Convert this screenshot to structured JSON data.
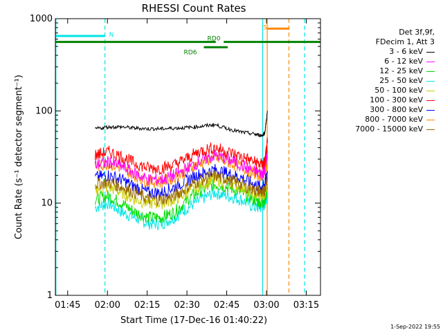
{
  "chart_data": {
    "type": "line",
    "title": "RHESSI Count Rates",
    "xlabel": "Start Time (17-Dec-16 01:40:22)",
    "ylabel": "Count Rate (s⁻¹ detector segment⁻¹)",
    "yscale": "log",
    "ylim": [
      1,
      1000
    ],
    "xlim_minutes": [
      0,
      100
    ],
    "x_tick_labels": [
      "01:45",
      "02:00",
      "02:15",
      "02:30",
      "02:45",
      "03:00",
      "03:15"
    ],
    "x_tick_minutes": [
      4.63,
      19.63,
      34.63,
      49.63,
      64.63,
      79.63,
      94.63
    ],
    "y_tick_labels": [
      "1",
      "10",
      "100",
      "1000"
    ],
    "y_tick_values": [
      1,
      10,
      100,
      1000
    ],
    "grid": false,
    "legend_placement": "right",
    "legend_header": [
      "Det 3f,9f,",
      "FDecim 1, Att 3"
    ],
    "series": [
      {
        "name": "3 - 6 keV",
        "color": "#000000",
        "x_minutes": [
          15,
          20,
          25,
          30,
          35,
          40,
          45,
          50,
          55,
          60,
          65,
          70,
          75,
          78,
          79,
          80
        ],
        "values": [
          64,
          67,
          67,
          65,
          64,
          64,
          65,
          66,
          68,
          71,
          64,
          59,
          56,
          54,
          58,
          100
        ]
      },
      {
        "name": "6 - 12 keV",
        "color": "#ff00ff",
        "x_minutes": [
          15,
          20,
          25,
          30,
          35,
          40,
          45,
          50,
          55,
          60,
          65,
          70,
          75,
          78,
          79,
          80
        ],
        "values": [
          26,
          28,
          25,
          21,
          18,
          18,
          20,
          24,
          29,
          33,
          30,
          26,
          22,
          21,
          23,
          38
        ]
      },
      {
        "name": "12 - 25 keV",
        "color": "#00dd00",
        "x_minutes": [
          15,
          20,
          25,
          30,
          35,
          40,
          45,
          50,
          55,
          60,
          65,
          70,
          75,
          78,
          79,
          80
        ],
        "values": [
          11,
          12,
          10,
          8,
          7,
          7,
          8,
          11,
          14,
          16,
          15,
          13,
          11,
          10,
          11,
          14
        ]
      },
      {
        "name": "25 - 50 keV",
        "color": "#00e5e5",
        "x_minutes": [
          15,
          20,
          25,
          30,
          35,
          40,
          45,
          50,
          55,
          60,
          65,
          70,
          75,
          78,
          79,
          80
        ],
        "values": [
          9,
          10,
          8,
          7,
          6,
          6,
          7,
          9,
          11,
          13,
          12,
          11,
          9,
          9,
          10,
          12
        ]
      },
      {
        "name": "50 - 100 keV",
        "color": "#cccc00",
        "x_minutes": [
          15,
          20,
          25,
          30,
          35,
          40,
          45,
          50,
          55,
          60,
          65,
          70,
          75,
          78,
          79,
          80
        ],
        "values": [
          14,
          15,
          13,
          11,
          10,
          10,
          11,
          13,
          16,
          18,
          17,
          15,
          13,
          12,
          13,
          17
        ]
      },
      {
        "name": "100 - 300 keV",
        "color": "#ff0000",
        "x_minutes": [
          15,
          20,
          25,
          30,
          35,
          40,
          45,
          50,
          55,
          60,
          65,
          70,
          75,
          78,
          79,
          80
        ],
        "values": [
          33,
          36,
          32,
          27,
          24,
          24,
          26,
          31,
          37,
          40,
          36,
          32,
          28,
          26,
          28,
          45
        ]
      },
      {
        "name": "300 - 800 keV",
        "color": "#0000ff",
        "x_minutes": [
          15,
          20,
          25,
          30,
          35,
          40,
          45,
          50,
          55,
          60,
          65,
          70,
          75,
          78,
          79,
          80
        ],
        "values": [
          19,
          20,
          18,
          15,
          13,
          13,
          15,
          18,
          21,
          23,
          21,
          19,
          16,
          15,
          16,
          22
        ]
      },
      {
        "name": "800 - 7000 keV",
        "color": "#ff8800",
        "x_minutes": [
          15,
          20,
          25,
          30,
          35,
          40,
          45,
          50,
          55,
          60,
          65,
          70,
          75,
          78,
          79,
          80
        ],
        "values": [
          25,
          27,
          24,
          20,
          17,
          17,
          19,
          23,
          28,
          31,
          28,
          25,
          21,
          20,
          22,
          30
        ]
      },
      {
        "name": "7000 - 15000 keV",
        "color": "#996600",
        "x_minutes": [
          15,
          20,
          25,
          30,
          35,
          40,
          45,
          50,
          55,
          60,
          65,
          70,
          75,
          78,
          79,
          80
        ],
        "values": [
          16,
          17,
          15,
          13,
          11,
          11,
          12,
          15,
          18,
          20,
          18,
          16,
          14,
          13,
          14,
          19
        ]
      }
    ],
    "annotations": {
      "vertical_lines": [
        {
          "minute": 0.2,
          "color": "#00e5e5",
          "style": "solid"
        },
        {
          "minute": 18.7,
          "color": "#00e5e5",
          "style": "dashed"
        },
        {
          "minute": 78.2,
          "color": "#00e5e5",
          "style": "solid"
        },
        {
          "minute": 79.9,
          "color": "#ff8800",
          "style": "solid"
        },
        {
          "minute": 88.1,
          "color": "#ff8800",
          "style": "dashed"
        },
        {
          "minute": 94.0,
          "color": "#00e5e5",
          "style": "dashed"
        }
      ],
      "bars": [
        {
          "label": "N",
          "color": "#00e5e5",
          "x_minutes": [
            0.2,
            18.7
          ],
          "level": 650
        },
        {
          "label": "S",
          "color": "#ff8800",
          "x_minutes": [
            79.9,
            88.1
          ],
          "level": 780
        },
        {
          "label": "RD0",
          "color": "#008000",
          "x_minutes": [
            0.2,
            60.5
          ],
          "level": 560
        },
        {
          "label": "",
          "color": "#008000",
          "x_minutes": [
            63.5,
            100
          ],
          "level": 560
        },
        {
          "label": "RD6",
          "color": "#008000",
          "x_minutes": [
            56.0,
            65.0
          ],
          "level": 490
        }
      ]
    }
  },
  "footer": {
    "timestamp": "1-Sep-2022 19:55"
  }
}
